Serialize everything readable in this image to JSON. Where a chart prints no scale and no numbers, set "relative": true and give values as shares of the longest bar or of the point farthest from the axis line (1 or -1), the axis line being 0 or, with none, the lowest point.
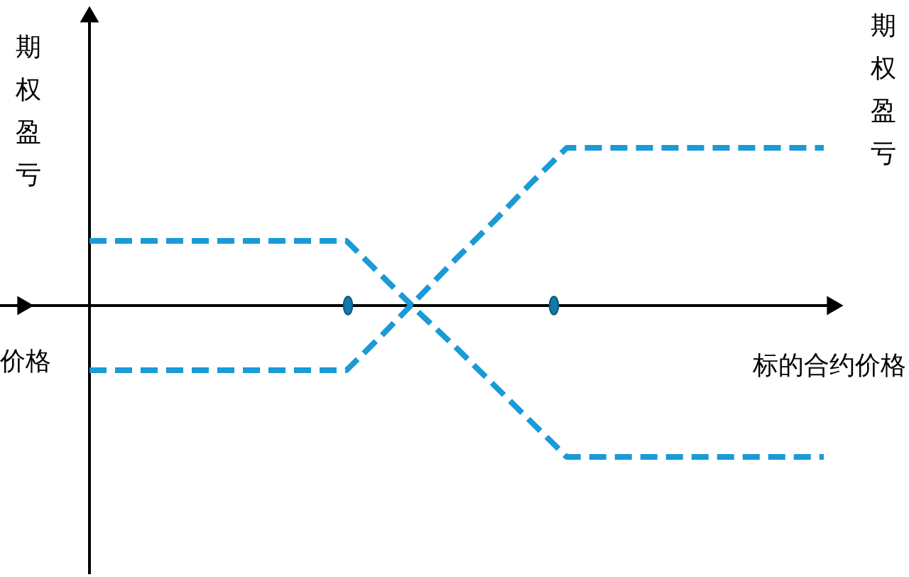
{
  "chart_data": {
    "type": "line",
    "relative": true,
    "categories": [
      null,
      null,
      null,
      null,
      null,
      null,
      null,
      null,
      null,
      null,
      null,
      null,
      null,
      null,
      null,
      null,
      null,
      null,
      null,
      null,
      null
    ],
    "ylabel": "期权盈亏",
    "y2label": "期权盈亏",
    "xlabel": "标的合约价格",
    "annotations": [
      "价格"
    ],
    "line_style": "dashed",
    "marker": "none",
    "series": [
      {
        "color": "#1a9ad6",
        "values": [
          0.41,
          0.41,
          0.41,
          0.41,
          0.41,
          0.41,
          0.41,
          0.41,
          0.18,
          -0.05,
          -0.27,
          -0.5,
          -0.73,
          -0.96,
          -0.96,
          -0.96,
          -0.96,
          -0.96,
          -0.96,
          -0.96,
          -0.96
        ]
      },
      {
        "color": "#1a9ad6",
        "values": [
          -0.41,
          -0.41,
          -0.41,
          -0.41,
          -0.41,
          -0.41,
          -0.41,
          -0.41,
          -0.18,
          0.06,
          0.3,
          0.53,
          0.77,
          1,
          1,
          1,
          1,
          1,
          1,
          1,
          1
        ]
      }
    ]
  }
}
